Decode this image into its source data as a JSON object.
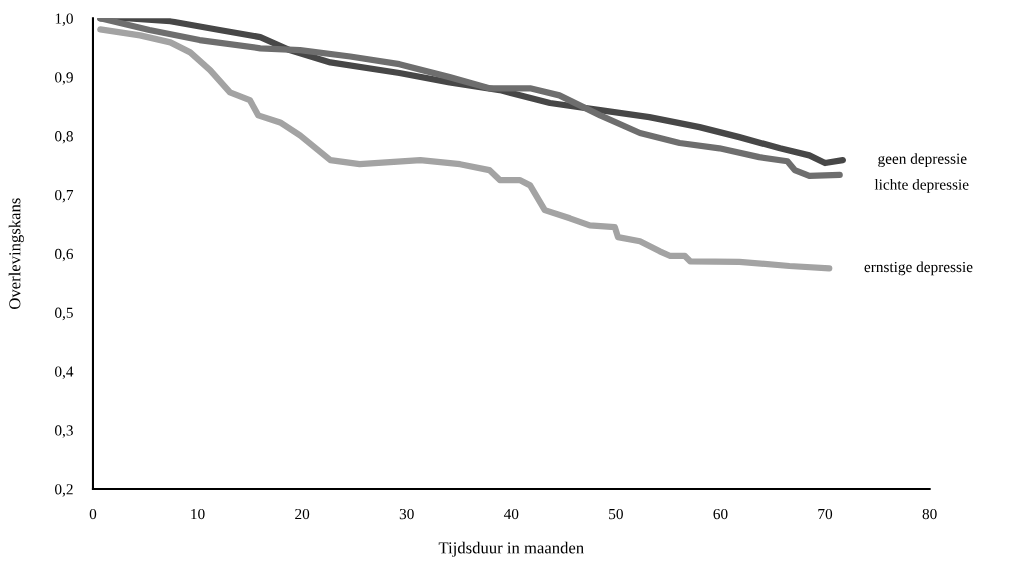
{
  "chart_data": {
    "type": "line",
    "xlabel": "Tijdsduur in maanden",
    "ylabel": "Overlevingskans",
    "xlim": [
      0,
      80
    ],
    "xticks": [
      0,
      10,
      20,
      30,
      40,
      50,
      60,
      70,
      80
    ],
    "ylim": [
      0.2,
      1.0
    ],
    "yticks": [
      {
        "value": 0.2,
        "label": "0,2"
      },
      {
        "value": 0.3,
        "label": "0,3"
      },
      {
        "value": 0.4,
        "label": "0,4"
      },
      {
        "value": 0.5,
        "label": "0,5"
      },
      {
        "value": 0.6,
        "label": "0,6"
      },
      {
        "value": 0.7,
        "label": "0,7"
      },
      {
        "value": 0.8,
        "label": "0,8"
      },
      {
        "value": 0.9,
        "label": "0,9"
      },
      {
        "value": 1.0,
        "label": "1,0"
      }
    ],
    "grid": false,
    "legend": false,
    "marker": "none",
    "line_style": "solid",
    "series": [
      {
        "name": "geen depressie",
        "color": "#474747",
        "x": [
          0.7,
          3.5,
          7.4,
          12.1,
          16,
          18.8,
          22.7,
          29.3,
          34.1,
          38.9,
          43.7,
          48.5,
          53.2,
          58,
          61.8,
          65.7,
          68.5,
          70,
          71.7
        ],
        "values": [
          1.0,
          1.0,
          0.995,
          0.98,
          0.968,
          0.946,
          0.925,
          0.907,
          0.891,
          0.878,
          0.856,
          0.844,
          0.832,
          0.815,
          0.798,
          0.779,
          0.767,
          0.754,
          0.759
        ]
      },
      {
        "name": "lichte depressie",
        "color": "#6e6e6e",
        "x": [
          0.7,
          5.4,
          10.2,
          16,
          19.8,
          24.6,
          29.3,
          34.1,
          37.9,
          41.8,
          44.6,
          48.5,
          52.3,
          56.1,
          59.9,
          63.7,
          66.4,
          67.1,
          68.5,
          71.4
        ],
        "values": [
          1.0,
          0.98,
          0.963,
          0.949,
          0.946,
          0.935,
          0.922,
          0.9,
          0.881,
          0.881,
          0.869,
          0.835,
          0.805,
          0.788,
          0.779,
          0.764,
          0.757,
          0.742,
          0.732,
          0.734
        ]
      },
      {
        "name": "ernstige depressie",
        "color": "#a3a3a3",
        "x": [
          0.7,
          4.5,
          7.4,
          9.3,
          11.2,
          13.1,
          15,
          15.8,
          17.9,
          19.8,
          22.7,
          25.5,
          31.3,
          35.1,
          37.9,
          38.9,
          40.8,
          41.8,
          43.2,
          45.6,
          47.5,
          49.9,
          50.2,
          52.3,
          54.2,
          55.2,
          56.6,
          57.1,
          61.8,
          66.6,
          70.4
        ],
        "values": [
          0.981,
          0.971,
          0.959,
          0.942,
          0.912,
          0.874,
          0.861,
          0.835,
          0.823,
          0.801,
          0.759,
          0.752,
          0.759,
          0.752,
          0.742,
          0.725,
          0.725,
          0.716,
          0.674,
          0.66,
          0.648,
          0.645,
          0.628,
          0.621,
          0.604,
          0.596,
          0.596,
          0.587,
          0.586,
          0.579,
          0.575
        ]
      }
    ]
  }
}
